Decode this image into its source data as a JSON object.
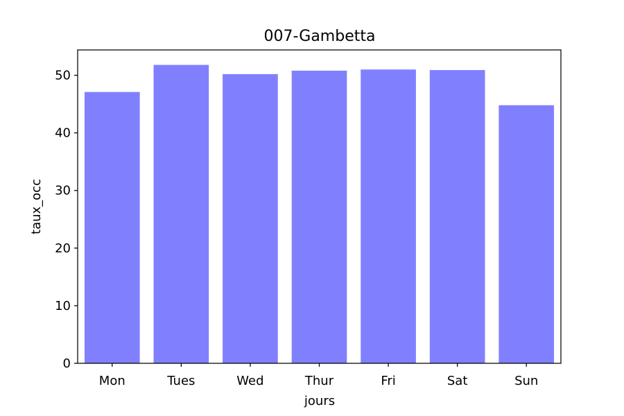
{
  "chart_data": {
    "type": "bar",
    "title": "007-Gambetta",
    "xlabel": "jours",
    "ylabel": "taux_occ",
    "categories": [
      "Mon",
      "Tues",
      "Wed",
      "Thur",
      "Fri",
      "Sat",
      "Sun"
    ],
    "values": [
      47.1,
      51.8,
      50.2,
      50.8,
      51.0,
      50.9,
      44.8
    ],
    "ylim": [
      0,
      54.4
    ],
    "yticks": [
      0,
      10,
      20,
      30,
      40,
      50
    ],
    "bar_color": "#8080ff",
    "grid": false,
    "legend": "none"
  }
}
